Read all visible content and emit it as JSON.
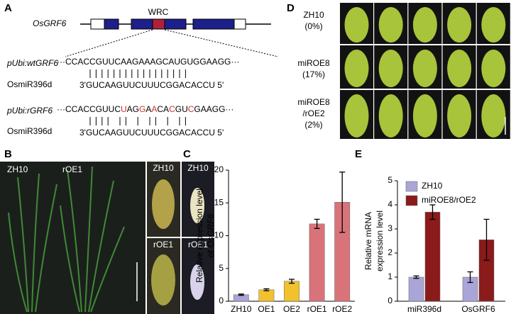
{
  "panel_labels": [
    "A",
    "B",
    "C",
    "D",
    "E"
  ],
  "gene_diagram": {
    "gene": "OsGRF6",
    "domain": "WRC"
  },
  "alignments": [
    {
      "construct": "pUbi:wtGRF6",
      "top": [
        {
          "text": "···CCACCGUUCAAGAAAGCAUGUGGAAGG···",
          "color": "#000000"
        }
      ],
      "mirna": "OsmiR396d",
      "bottom": "3'GUCAAGUUCUUUCGGACACCU 5'"
    },
    {
      "construct": "pUbi:rGRF6",
      "top": [
        {
          "text": "···CCACCGUUC",
          "color": "#000000"
        },
        {
          "text": "U",
          "color": "#d0312d"
        },
        {
          "text": "AG",
          "color": "#000000"
        },
        {
          "text": "G",
          "color": "#d0312d"
        },
        {
          "text": "A",
          "color": "#000000"
        },
        {
          "text": "A",
          "color": "#d0312d"
        },
        {
          "text": "CA",
          "color": "#000000"
        },
        {
          "text": "C",
          "color": "#d0312d"
        },
        {
          "text": "GU",
          "color": "#000000"
        },
        {
          "text": "C",
          "color": "#d0312d"
        },
        {
          "text": "GAAGG···",
          "color": "#000000"
        }
      ],
      "mirna": "OsmiR396d",
      "bottom": "3'GUCAAGUUCUUUCGGACACCU 5'"
    }
  ],
  "photos_b": {
    "plants": [
      "ZH10",
      "rOE1"
    ],
    "panels": [
      "ZH10",
      "ZH10",
      "rOE1",
      "rOE1"
    ]
  },
  "photos_d": {
    "rows": [
      {
        "label": [
          "ZH10",
          "(0%)"
        ]
      },
      {
        "label": [
          "miROE8",
          "(17%)"
        ]
      },
      {
        "label": [
          "miROE8",
          "/rOE2",
          "(2%)"
        ]
      }
    ]
  },
  "chart_data": [
    {
      "type": "bar",
      "ylabel": [
        "Relative expression level",
        "of",
        "OsGRF6"
      ],
      "categories": [
        "ZH10",
        "OE1",
        "OE2",
        "rOE1",
        "rOE2"
      ],
      "values": [
        1.0,
        1.75,
        3.05,
        11.8,
        15.1
      ],
      "errors": [
        0.1,
        0.15,
        0.3,
        0.7,
        4.6
      ],
      "colors": [
        "#a9a5d6",
        "#f2c12e",
        "#f2c12e",
        "#d9737a",
        "#d9737a"
      ],
      "ylim": [
        0,
        20
      ],
      "yticks": [
        0,
        5,
        10,
        15,
        20
      ]
    },
    {
      "type": "grouped_bar",
      "ylabel": [
        "Relative mRNA",
        "expression level"
      ],
      "categories": [
        "miR396d",
        "OsGRF6"
      ],
      "series": [
        {
          "name": "ZH10",
          "color": "#a9a5d6",
          "values": [
            1.0,
            1.0
          ],
          "errors": [
            0.05,
            0.22
          ]
        },
        {
          "name": "miROE8/rOE2",
          "color": "#8b1a1a",
          "values": [
            3.7,
            2.55
          ],
          "errors": [
            0.3,
            0.85
          ]
        }
      ],
      "ylim": [
        0,
        5
      ],
      "yticks": [
        0,
        1,
        2,
        3,
        4,
        5
      ],
      "legend": "upper-left"
    }
  ]
}
